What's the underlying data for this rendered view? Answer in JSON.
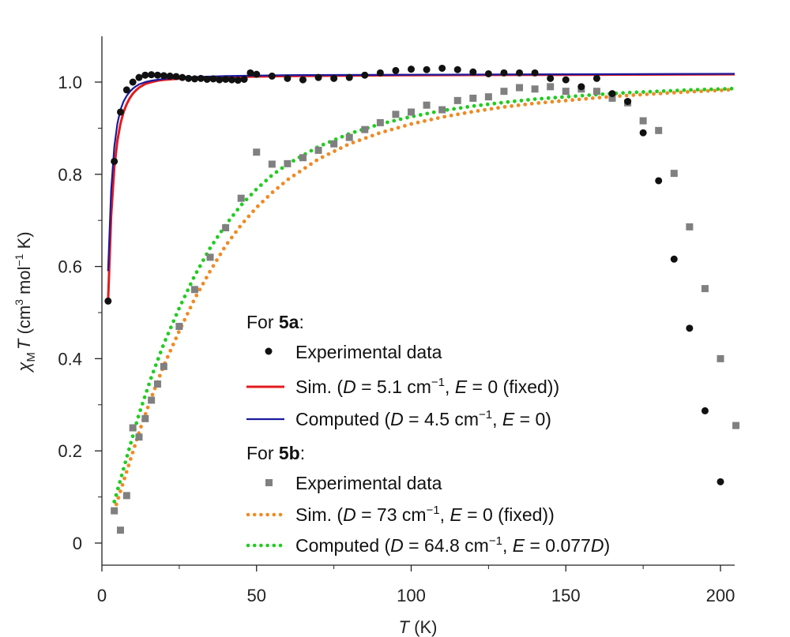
{
  "chart_data": {
    "type": "scatter",
    "title": "",
    "xlabel": {
      "var": "T",
      "unit": " (K)"
    },
    "ylabel": {
      "chi": "χ",
      "sub": "M",
      "var": "T",
      "open": " (cm",
      "sup3": "3",
      "mid": " mol",
      "supm1": "−1",
      "end": " K)"
    },
    "xlim": [
      0,
      205
    ],
    "ylim": [
      -0.05,
      1.1
    ],
    "x_ticks": [
      0,
      50,
      100,
      150,
      200
    ],
    "x_tick_labels": [
      "0",
      "50",
      "100",
      "150",
      "200"
    ],
    "y_ticks": [
      0,
      0.2,
      0.4,
      0.6,
      0.8,
      1.0
    ],
    "y_tick_labels": [
      "0",
      "0.2",
      "0.4",
      "0.6",
      "0.8",
      "1.0"
    ],
    "colors": {
      "exp5a": "#111111",
      "sim5a": "#e31a1c",
      "comp5a": "#1a1a9e",
      "exp5b": "#808080",
      "sim5b": "#f08a24",
      "comp5b": "#22cc22"
    },
    "series": [
      {
        "id": "exp5a",
        "name": "5a Experimental data",
        "style": "circle",
        "x": [
          2,
          4,
          6,
          8,
          10,
          12,
          14,
          16,
          18,
          20,
          22,
          24,
          26,
          28,
          30,
          32,
          34,
          36,
          38,
          40,
          42,
          44,
          46,
          48,
          50,
          55,
          60,
          65,
          70,
          75,
          80,
          85,
          90,
          95,
          100,
          105,
          110,
          115,
          120,
          125,
          130,
          135,
          140,
          145,
          150,
          155,
          160,
          165,
          170,
          175,
          180,
          185,
          190,
          195,
          200
        ],
        "y": [
          0.525,
          0.828,
          0.935,
          0.983,
          1.0,
          1.01,
          1.015,
          1.016,
          1.015,
          1.014,
          1.013,
          1.012,
          1.01,
          1.008,
          1.007,
          1.008,
          1.006,
          1.007,
          1.005,
          1.006,
          1.005,
          1.004,
          1.006,
          1.02,
          1.017,
          1.013,
          1.008,
          1.005,
          1.01,
          1.008,
          1.01,
          1.015,
          1.02,
          1.025,
          1.028,
          1.027,
          1.03,
          1.027,
          1.022,
          1.018,
          1.02,
          1.02,
          1.02,
          1.008,
          1.005,
          0.99,
          1.008,
          0.975,
          0.958,
          0.89,
          0.786,
          0.616,
          0.466,
          0.287,
          0.133
        ]
      },
      {
        "id": "sim5a",
        "name": "5a Simulation",
        "style": "solid",
        "width": 3,
        "x": [
          2,
          3,
          4,
          5,
          6,
          7,
          8,
          9,
          10,
          11,
          12,
          14,
          16,
          18,
          20,
          24,
          30,
          40,
          60,
          100,
          150,
          205
        ],
        "y": [
          0.525,
          0.71,
          0.815,
          0.873,
          0.91,
          0.935,
          0.952,
          0.965,
          0.975,
          0.982,
          0.988,
          0.996,
          1.0,
          1.003,
          1.005,
          1.007,
          1.009,
          1.011,
          1.013,
          1.015,
          1.016,
          1.017
        ]
      },
      {
        "id": "comp5a",
        "name": "5a Computed",
        "style": "solid",
        "width": 2.2,
        "x": [
          2,
          3,
          4,
          5,
          6,
          7,
          8,
          9,
          10,
          11,
          12,
          14,
          16,
          18,
          20,
          24,
          30,
          40,
          60,
          100,
          150,
          205
        ],
        "y": [
          0.59,
          0.765,
          0.86,
          0.91,
          0.94,
          0.958,
          0.97,
          0.979,
          0.986,
          0.991,
          0.995,
          1.0,
          1.003,
          1.005,
          1.007,
          1.009,
          1.011,
          1.013,
          1.015,
          1.016,
          1.017,
          1.018
        ]
      },
      {
        "id": "exp5b",
        "name": "5b Experimental data",
        "style": "square",
        "x": [
          4,
          6,
          8,
          10,
          12,
          14,
          16,
          18,
          20,
          25,
          30,
          35,
          40,
          45,
          50,
          55,
          60,
          65,
          70,
          75,
          80,
          85,
          90,
          95,
          100,
          105,
          110,
          115,
          120,
          125,
          130,
          135,
          140,
          145,
          150,
          155,
          160,
          165,
          170,
          175,
          180,
          185,
          190,
          195,
          200,
          205
        ],
        "y": [
          0.07,
          0.028,
          0.103,
          0.25,
          0.23,
          0.27,
          0.31,
          0.345,
          0.383,
          0.47,
          0.55,
          0.62,
          0.684,
          0.748,
          0.848,
          0.822,
          0.823,
          0.836,
          0.852,
          0.866,
          0.88,
          0.897,
          0.912,
          0.93,
          0.935,
          0.95,
          0.94,
          0.96,
          0.965,
          0.968,
          0.98,
          0.988,
          0.985,
          0.99,
          0.98,
          0.985,
          0.98,
          0.965,
          0.955,
          0.916,
          0.895,
          0.802,
          0.686,
          0.552,
          0.4,
          0.255
        ]
      },
      {
        "id": "sim5b",
        "name": "5b Simulation",
        "style": "dotted",
        "x": [
          4,
          8,
          12,
          16,
          20,
          25,
          30,
          35,
          40,
          45,
          50,
          55,
          60,
          70,
          80,
          90,
          100,
          110,
          120,
          130,
          140,
          150,
          160,
          170,
          180,
          190,
          200,
          205
        ],
        "y": [
          0.07,
          0.155,
          0.24,
          0.316,
          0.385,
          0.46,
          0.53,
          0.59,
          0.645,
          0.69,
          0.728,
          0.76,
          0.788,
          0.833,
          0.866,
          0.89,
          0.909,
          0.924,
          0.936,
          0.946,
          0.954,
          0.96,
          0.966,
          0.971,
          0.975,
          0.979,
          0.982,
          0.984
        ]
      },
      {
        "id": "comp5b",
        "name": "5b Computed",
        "style": "dotted",
        "x": [
          4,
          8,
          12,
          16,
          20,
          25,
          30,
          35,
          40,
          45,
          50,
          55,
          60,
          70,
          80,
          90,
          100,
          110,
          120,
          130,
          140,
          150,
          160,
          170,
          180,
          190,
          200,
          205
        ],
        "y": [
          0.09,
          0.185,
          0.28,
          0.36,
          0.432,
          0.51,
          0.58,
          0.64,
          0.69,
          0.733,
          0.768,
          0.798,
          0.822,
          0.86,
          0.888,
          0.909,
          0.925,
          0.938,
          0.948,
          0.956,
          0.963,
          0.968,
          0.973,
          0.977,
          0.98,
          0.983,
          0.985,
          0.986
        ]
      }
    ]
  },
  "legend": {
    "group_a": {
      "prefix": "For ",
      "name": "5a",
      "suffix": ":"
    },
    "group_b": {
      "prefix": "For ",
      "name": "5b",
      "suffix": ":"
    },
    "exp_a": "Experimental data",
    "sim_a": {
      "a": "Sim. (",
      "D": "D",
      "b": " = 5.1 cm",
      "sup": "−1",
      "c": ", ",
      "E": "E",
      "d": " = 0 (fixed))"
    },
    "comp_a": {
      "a": "Computed (",
      "D": "D",
      "b": " = 4.5 cm",
      "sup": "−1",
      "c": ", ",
      "E": "E",
      "d": " = 0)"
    },
    "exp_b": "Experimental data",
    "sim_b": {
      "a": "Sim. (",
      "D": "D",
      "b": " = 73 cm",
      "sup": "−1",
      "c": ", ",
      "E": "E",
      "d": " = 0 (fixed))"
    },
    "comp_b": {
      "a": "Computed (",
      "D": "D",
      "b": " = 64.8 cm",
      "sup": "−1",
      "c": ", ",
      "E": "E",
      "d": " = 0.077",
      "D2": "D",
      "e": ")"
    }
  }
}
